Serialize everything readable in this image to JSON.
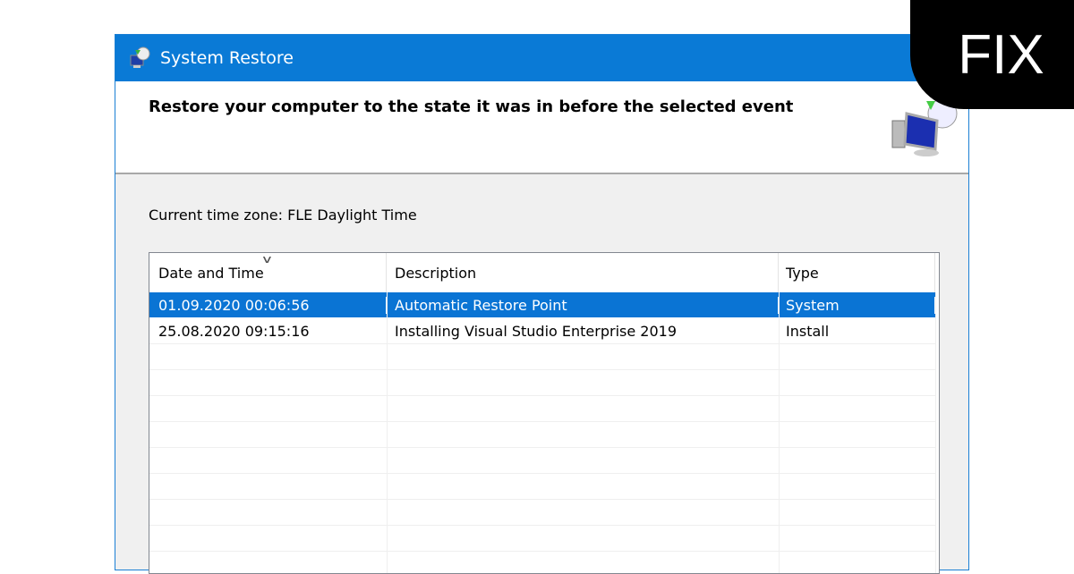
{
  "window": {
    "title": "System Restore",
    "heading": "Restore your computer to the state it was in before the selected event"
  },
  "timezone_label": "Current time zone: FLE Daylight Time",
  "table": {
    "columns": [
      "Date and Time",
      "Description",
      "Type"
    ],
    "sort_column": "Date and Time",
    "rows": [
      {
        "date": "01.09.2020 00:06:56",
        "description": "Automatic Restore Point",
        "type": "System",
        "selected": true
      },
      {
        "date": "25.08.2020 09:15:16",
        "description": "Installing Visual Studio Enterprise 2019",
        "type": "Install",
        "selected": false
      }
    ]
  },
  "badge": "FIX",
  "colors": {
    "titlebar": "#0a7ad6",
    "selection": "#0a74d4",
    "badge": "#000000"
  }
}
